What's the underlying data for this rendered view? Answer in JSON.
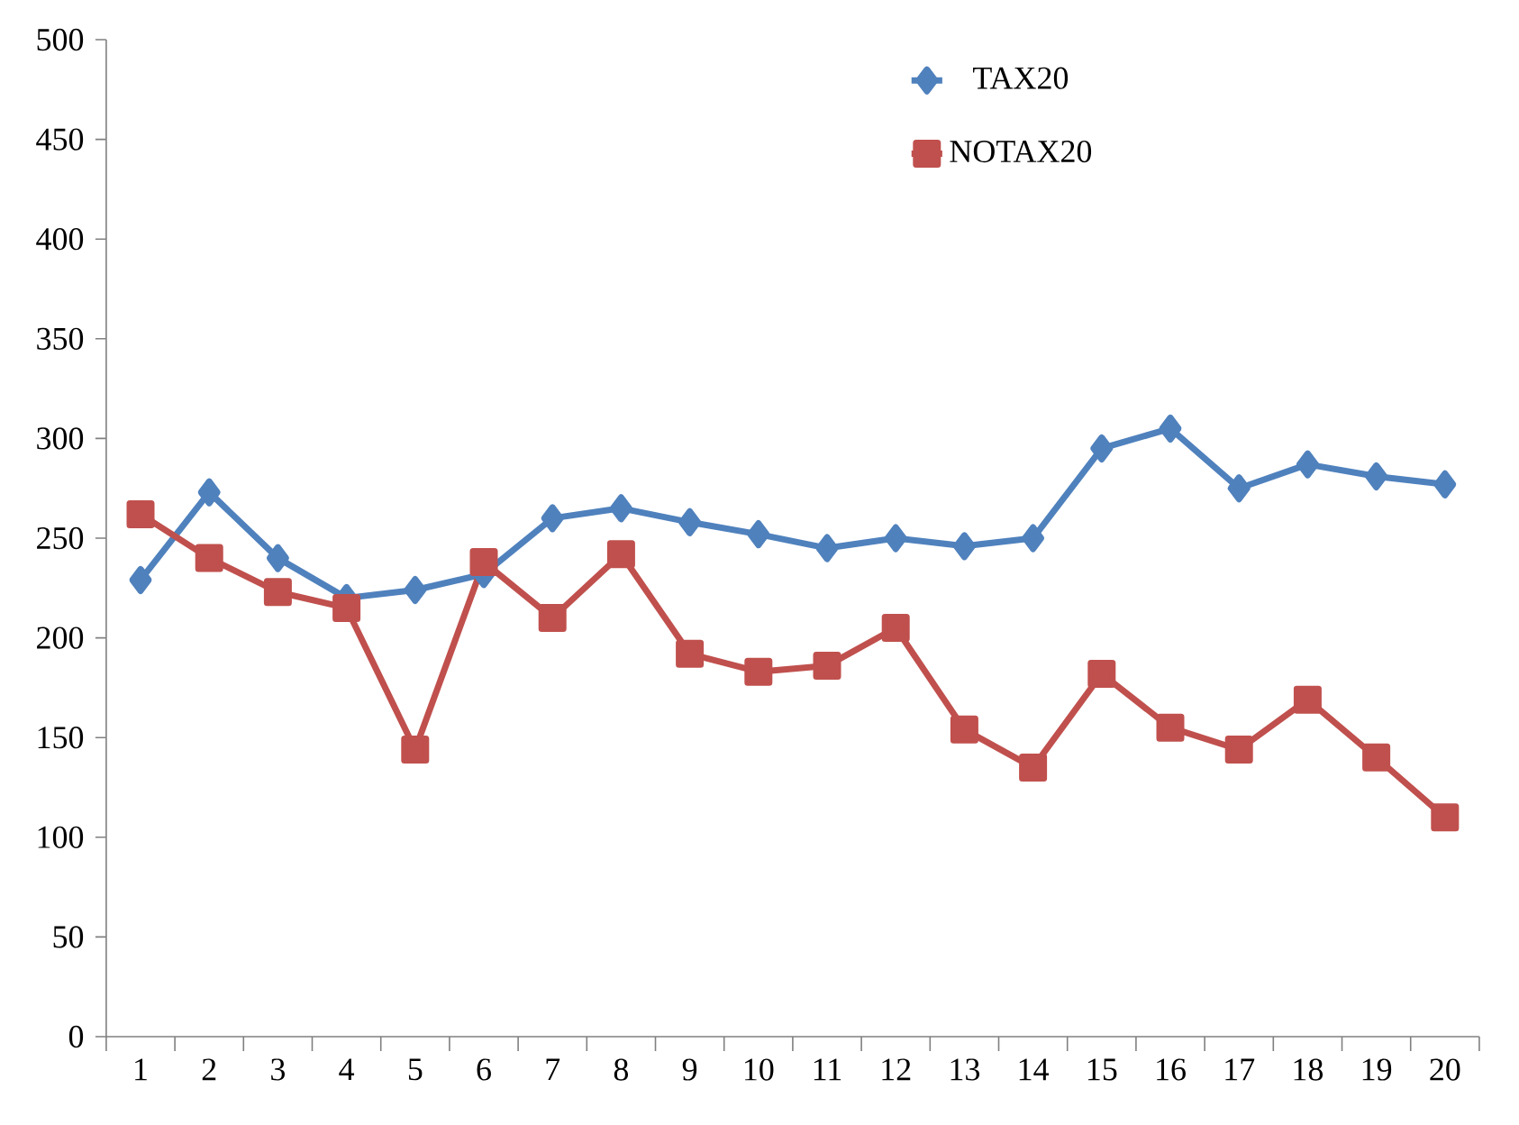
{
  "chart_data": {
    "type": "line",
    "categories": [
      "1",
      "2",
      "3",
      "4",
      "5",
      "6",
      "7",
      "8",
      "9",
      "10",
      "11",
      "12",
      "13",
      "14",
      "15",
      "16",
      "17",
      "18",
      "19",
      "20"
    ],
    "series": [
      {
        "name": "TAX20",
        "color": "#4f81bd",
        "marker": "diamond",
        "values": [
          229,
          273,
          240,
          220,
          224,
          232,
          260,
          265,
          258,
          252,
          245,
          250,
          246,
          250,
          295,
          305,
          275,
          287,
          281,
          277
        ]
      },
      {
        "name": "NOTAX20",
        "color": "#c0504d",
        "marker": "square",
        "values": [
          262,
          240,
          223,
          215,
          144,
          238,
          210,
          242,
          192,
          183,
          186,
          205,
          154,
          135,
          182,
          155,
          144,
          169,
          140,
          110
        ]
      }
    ],
    "ylim": [
      0,
      500
    ],
    "yticks": [
      0,
      50,
      100,
      150,
      200,
      250,
      300,
      350,
      400,
      450,
      500
    ],
    "grid": false,
    "legend": "top right",
    "line_style": "solid"
  }
}
